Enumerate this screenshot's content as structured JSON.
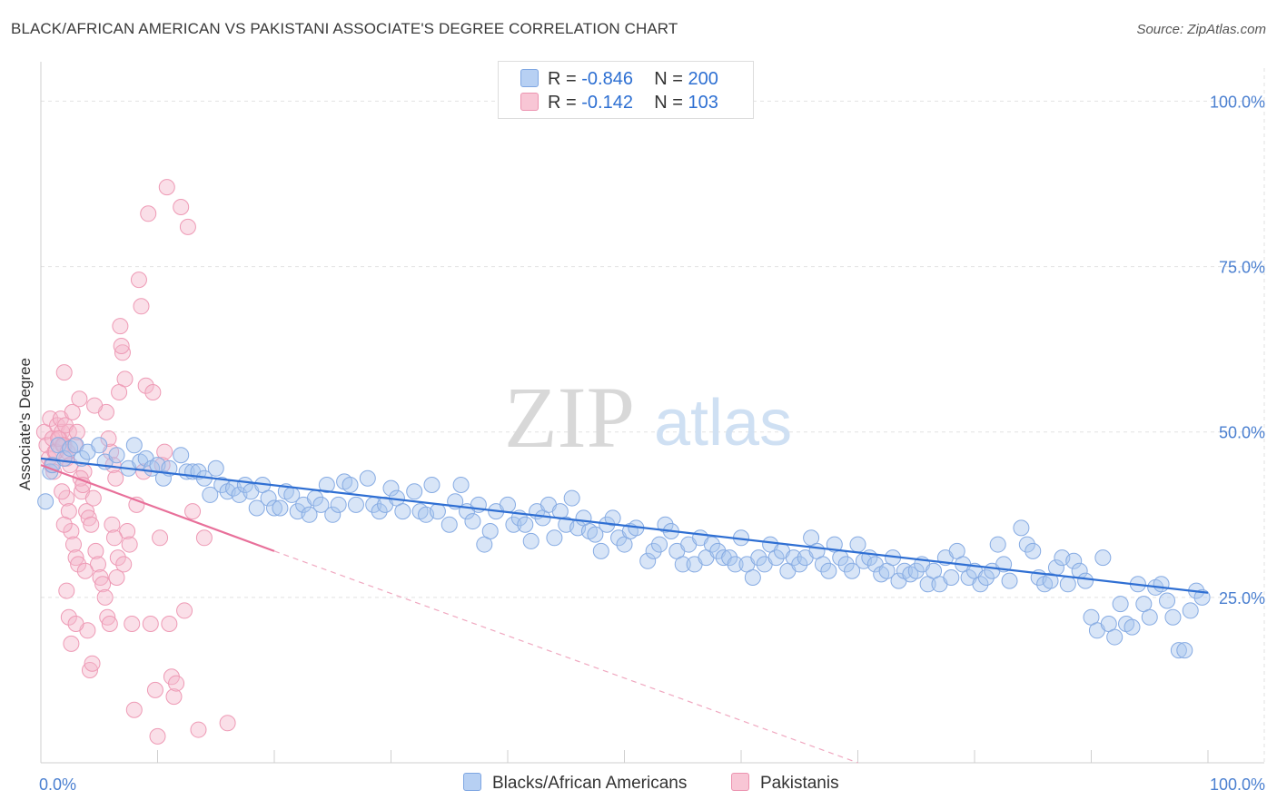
{
  "title": "BLACK/AFRICAN AMERICAN VS PAKISTANI ASSOCIATE'S DEGREE CORRELATION CHART",
  "source": "Source: ZipAtlas.com",
  "watermark": {
    "zip": "ZIP",
    "atlas": "atlas"
  },
  "legend": {
    "r_label": "R =",
    "n_label": "N =",
    "blue": {
      "r": "-0.846",
      "n": "200"
    },
    "pink": {
      "r": "-0.142",
      "n": "103"
    }
  },
  "colors": {
    "blue": "#a9c6ee",
    "blue_line": "#2f6fd3",
    "pink": "#f4b8cb",
    "pink_line": "#e8709a"
  },
  "chart_data": {
    "type": "scatter",
    "title": "BLACK/AFRICAN AMERICAN VS PAKISTANI ASSOCIATE'S DEGREE CORRELATION CHART",
    "xlabel": "",
    "ylabel": "Associate's Degree",
    "xlim": [
      0,
      100
    ],
    "ylim": [
      0,
      105
    ],
    "x_tick_labels": [
      "0.0%",
      "100.0%"
    ],
    "y_tick_labels": [
      "25.0%",
      "50.0%",
      "75.0%",
      "100.0%"
    ],
    "y_ticks": [
      25,
      50,
      75,
      100
    ],
    "series": [
      {
        "name": "Blacks/African Americans",
        "color": "#a9c6ee",
        "trend": {
          "x0": 0,
          "y0": 46.0,
          "x1": 100,
          "y1": 25.7
        },
        "points": [
          [
            0.4,
            39.5
          ],
          [
            0.8,
            44
          ],
          [
            1,
            45
          ],
          [
            1.5,
            48
          ],
          [
            2,
            46
          ],
          [
            2.5,
            47.5
          ],
          [
            3,
            48
          ],
          [
            3.5,
            46
          ],
          [
            4,
            47
          ],
          [
            5,
            48
          ],
          [
            5.5,
            45.5
          ],
          [
            6.5,
            46.5
          ],
          [
            7.5,
            44.5
          ],
          [
            8,
            48
          ],
          [
            8.5,
            45.5
          ],
          [
            9,
            46
          ],
          [
            9.5,
            44.5
          ],
          [
            10,
            45
          ],
          [
            10.5,
            43
          ],
          [
            11,
            44.5
          ],
          [
            12,
            46.5
          ],
          [
            12.5,
            44
          ],
          [
            13,
            44
          ],
          [
            13.5,
            44
          ],
          [
            14,
            43
          ],
          [
            14.5,
            40.5
          ],
          [
            15,
            44.5
          ],
          [
            15.5,
            42
          ],
          [
            16,
            41
          ],
          [
            16.5,
            41.5
          ],
          [
            17,
            40.5
          ],
          [
            17.5,
            42
          ],
          [
            18,
            41
          ],
          [
            18.5,
            38.5
          ],
          [
            19,
            42
          ],
          [
            19.5,
            40
          ],
          [
            20,
            38.5
          ],
          [
            20.5,
            38.5
          ],
          [
            21,
            41
          ],
          [
            21.5,
            40.5
          ],
          [
            22,
            38
          ],
          [
            22.5,
            39
          ],
          [
            23,
            37.5
          ],
          [
            23.5,
            40
          ],
          [
            24,
            39
          ],
          [
            24.5,
            42
          ],
          [
            25,
            37.5
          ],
          [
            25.5,
            39
          ],
          [
            26,
            42.5
          ],
          [
            26.5,
            42
          ],
          [
            27,
            39
          ],
          [
            28,
            43
          ],
          [
            28.5,
            39
          ],
          [
            29,
            38
          ],
          [
            29.5,
            39
          ],
          [
            30,
            41.5
          ],
          [
            30.5,
            40
          ],
          [
            31,
            38
          ],
          [
            32,
            41
          ],
          [
            32.5,
            38
          ],
          [
            33,
            37.5
          ],
          [
            33.5,
            42
          ],
          [
            34,
            38
          ],
          [
            35,
            36
          ],
          [
            35.5,
            39.5
          ],
          [
            36,
            42
          ],
          [
            36.5,
            38
          ],
          [
            37,
            36.5
          ],
          [
            37.5,
            39
          ],
          [
            38,
            33
          ],
          [
            38.5,
            35
          ],
          [
            39,
            38
          ],
          [
            40,
            39
          ],
          [
            40.5,
            36
          ],
          [
            41,
            37
          ],
          [
            41.5,
            36
          ],
          [
            42,
            33.5
          ],
          [
            42.5,
            38
          ],
          [
            43,
            37
          ],
          [
            43.5,
            39
          ],
          [
            44,
            34
          ],
          [
            44.5,
            38
          ],
          [
            45,
            36
          ],
          [
            45.5,
            40
          ],
          [
            46,
            35.5
          ],
          [
            46.5,
            37
          ],
          [
            47,
            35
          ],
          [
            47.5,
            34.5
          ],
          [
            48,
            32
          ],
          [
            48.5,
            36
          ],
          [
            49,
            37
          ],
          [
            49.5,
            34
          ],
          [
            50,
            33
          ],
          [
            50.5,
            35
          ],
          [
            51,
            35.5
          ],
          [
            52,
            30.5
          ],
          [
            52.5,
            32
          ],
          [
            53,
            33
          ],
          [
            53.5,
            36
          ],
          [
            54,
            35
          ],
          [
            54.5,
            32
          ],
          [
            55,
            30
          ],
          [
            55.5,
            33
          ],
          [
            56,
            30
          ],
          [
            56.5,
            34
          ],
          [
            57,
            31
          ],
          [
            57.5,
            33
          ],
          [
            58,
            32
          ],
          [
            58.5,
            31
          ],
          [
            59,
            31
          ],
          [
            59.5,
            30
          ],
          [
            60,
            34
          ],
          [
            60.5,
            30
          ],
          [
            61,
            28
          ],
          [
            61.5,
            31
          ],
          [
            62,
            30
          ],
          [
            62.5,
            33
          ],
          [
            63,
            31
          ],
          [
            63.5,
            32
          ],
          [
            64,
            29
          ],
          [
            64.5,
            31
          ],
          [
            65,
            30
          ],
          [
            65.5,
            31
          ],
          [
            66,
            34
          ],
          [
            66.5,
            32
          ],
          [
            67,
            30
          ],
          [
            67.5,
            29
          ],
          [
            68,
            33
          ],
          [
            68.5,
            31
          ],
          [
            69,
            30
          ],
          [
            69.5,
            29
          ],
          [
            70,
            33
          ],
          [
            70.5,
            30.5
          ],
          [
            71,
            31
          ],
          [
            71.5,
            30
          ],
          [
            72,
            28.5
          ],
          [
            72.5,
            29
          ],
          [
            73,
            31
          ],
          [
            73.5,
            27.5
          ],
          [
            74,
            29
          ],
          [
            74.5,
            28.5
          ],
          [
            75,
            29
          ],
          [
            75.5,
            30
          ],
          [
            76,
            27
          ],
          [
            76.5,
            29
          ],
          [
            77,
            27
          ],
          [
            77.5,
            31
          ],
          [
            78,
            28
          ],
          [
            78.5,
            32
          ],
          [
            79,
            30
          ],
          [
            79.5,
            28
          ],
          [
            80,
            29
          ],
          [
            80.5,
            27
          ],
          [
            81,
            28
          ],
          [
            81.5,
            29
          ],
          [
            82,
            33
          ],
          [
            82.5,
            30
          ],
          [
            83,
            27.5
          ],
          [
            84,
            35.5
          ],
          [
            84.5,
            33
          ],
          [
            85,
            32
          ],
          [
            85.5,
            28
          ],
          [
            86,
            27
          ],
          [
            86.5,
            27.5
          ],
          [
            87,
            29.5
          ],
          [
            87.5,
            31
          ],
          [
            88,
            27
          ],
          [
            88.5,
            30.5
          ],
          [
            89,
            29
          ],
          [
            89.5,
            27.5
          ],
          [
            90,
            22
          ],
          [
            90.5,
            20
          ],
          [
            91,
            31
          ],
          [
            91.5,
            21
          ],
          [
            92,
            19
          ],
          [
            92.5,
            24
          ],
          [
            93,
            21
          ],
          [
            93.5,
            20.5
          ],
          [
            94,
            27
          ],
          [
            94.5,
            24
          ],
          [
            95,
            22
          ],
          [
            95.5,
            26.5
          ],
          [
            96,
            27
          ],
          [
            96.5,
            24.5
          ],
          [
            97,
            22
          ],
          [
            97.5,
            17
          ],
          [
            98,
            17
          ],
          [
            98.5,
            23
          ],
          [
            99,
            26
          ],
          [
            99.5,
            25
          ]
        ]
      },
      {
        "name": "Pakistanis",
        "color": "#f4b8cb",
        "trend": {
          "x0": 0,
          "y0": 45.0,
          "x1": 20,
          "y1": 32.0
        },
        "trend_dashed": {
          "x0": 20,
          "y0": 32.0,
          "x1": 70,
          "y1": 0
        },
        "points": [
          [
            0.3,
            50
          ],
          [
            0.5,
            48
          ],
          [
            0.7,
            46
          ],
          [
            0.8,
            52
          ],
          [
            1,
            49
          ],
          [
            1.2,
            47
          ],
          [
            1.4,
            51
          ],
          [
            1.6,
            49
          ],
          [
            1.8,
            50
          ],
          [
            2,
            48
          ],
          [
            2.2,
            46
          ],
          [
            2.4,
            50
          ],
          [
            0.9,
            45
          ],
          [
            1.1,
            44
          ],
          [
            1.3,
            47
          ],
          [
            1.5,
            49
          ],
          [
            1.7,
            52
          ],
          [
            1.9,
            48
          ],
          [
            2.1,
            51
          ],
          [
            2.3,
            47
          ],
          [
            2.5,
            45
          ],
          [
            2.7,
            53
          ],
          [
            2.9,
            48
          ],
          [
            3.1,
            50
          ],
          [
            3.3,
            55
          ],
          [
            3.5,
            41
          ],
          [
            3.7,
            44
          ],
          [
            3.9,
            38
          ],
          [
            4.1,
            37
          ],
          [
            4.3,
            36
          ],
          [
            4.5,
            40
          ],
          [
            4.7,
            32
          ],
          [
            4.9,
            30
          ],
          [
            5.1,
            28
          ],
          [
            5.3,
            27
          ],
          [
            5.5,
            25
          ],
          [
            5.7,
            22
          ],
          [
            5.9,
            21
          ],
          [
            2.0,
            59
          ],
          [
            2.2,
            40
          ],
          [
            2.4,
            38
          ],
          [
            2.6,
            35
          ],
          [
            2.8,
            33
          ],
          [
            3.0,
            31
          ],
          [
            3.2,
            30
          ],
          [
            3.4,
            43
          ],
          [
            3.6,
            42
          ],
          [
            3.8,
            29
          ],
          [
            4.0,
            20
          ],
          [
            4.2,
            14
          ],
          [
            4.4,
            15
          ],
          [
            1.8,
            41
          ],
          [
            2.0,
            36
          ],
          [
            2.2,
            26
          ],
          [
            2.4,
            22
          ],
          [
            2.6,
            18
          ],
          [
            3.0,
            21
          ],
          [
            6.0,
            47
          ],
          [
            6.2,
            45
          ],
          [
            6.4,
            43
          ],
          [
            6.6,
            31
          ],
          [
            6.8,
            66
          ],
          [
            7.0,
            62
          ],
          [
            7.2,
            58
          ],
          [
            7.4,
            35
          ],
          [
            7.6,
            33
          ],
          [
            7.8,
            21
          ],
          [
            8.0,
            8
          ],
          [
            8.2,
            39
          ],
          [
            8.4,
            73
          ],
          [
            8.6,
            69
          ],
          [
            8.8,
            44
          ],
          [
            9.0,
            57
          ],
          [
            9.2,
            83
          ],
          [
            9.4,
            21
          ],
          [
            9.6,
            56
          ],
          [
            9.8,
            11
          ],
          [
            10.0,
            4
          ],
          [
            10.2,
            34
          ],
          [
            10.4,
            45
          ],
          [
            10.6,
            47
          ],
          [
            10.8,
            87
          ],
          [
            11.0,
            21
          ],
          [
            11.2,
            13
          ],
          [
            11.4,
            10
          ],
          [
            11.6,
            12
          ],
          [
            12.0,
            84
          ],
          [
            12.3,
            23
          ],
          [
            12.6,
            81
          ],
          [
            13.0,
            38
          ],
          [
            13.5,
            5
          ],
          [
            14.0,
            34
          ],
          [
            16.0,
            6
          ],
          [
            5.6,
            53
          ],
          [
            5.8,
            49
          ],
          [
            6.1,
            36
          ],
          [
            6.3,
            34
          ],
          [
            6.5,
            28
          ],
          [
            6.7,
            56
          ],
          [
            6.9,
            63
          ],
          [
            7.1,
            30
          ],
          [
            4.6,
            54
          ]
        ]
      }
    ]
  }
}
